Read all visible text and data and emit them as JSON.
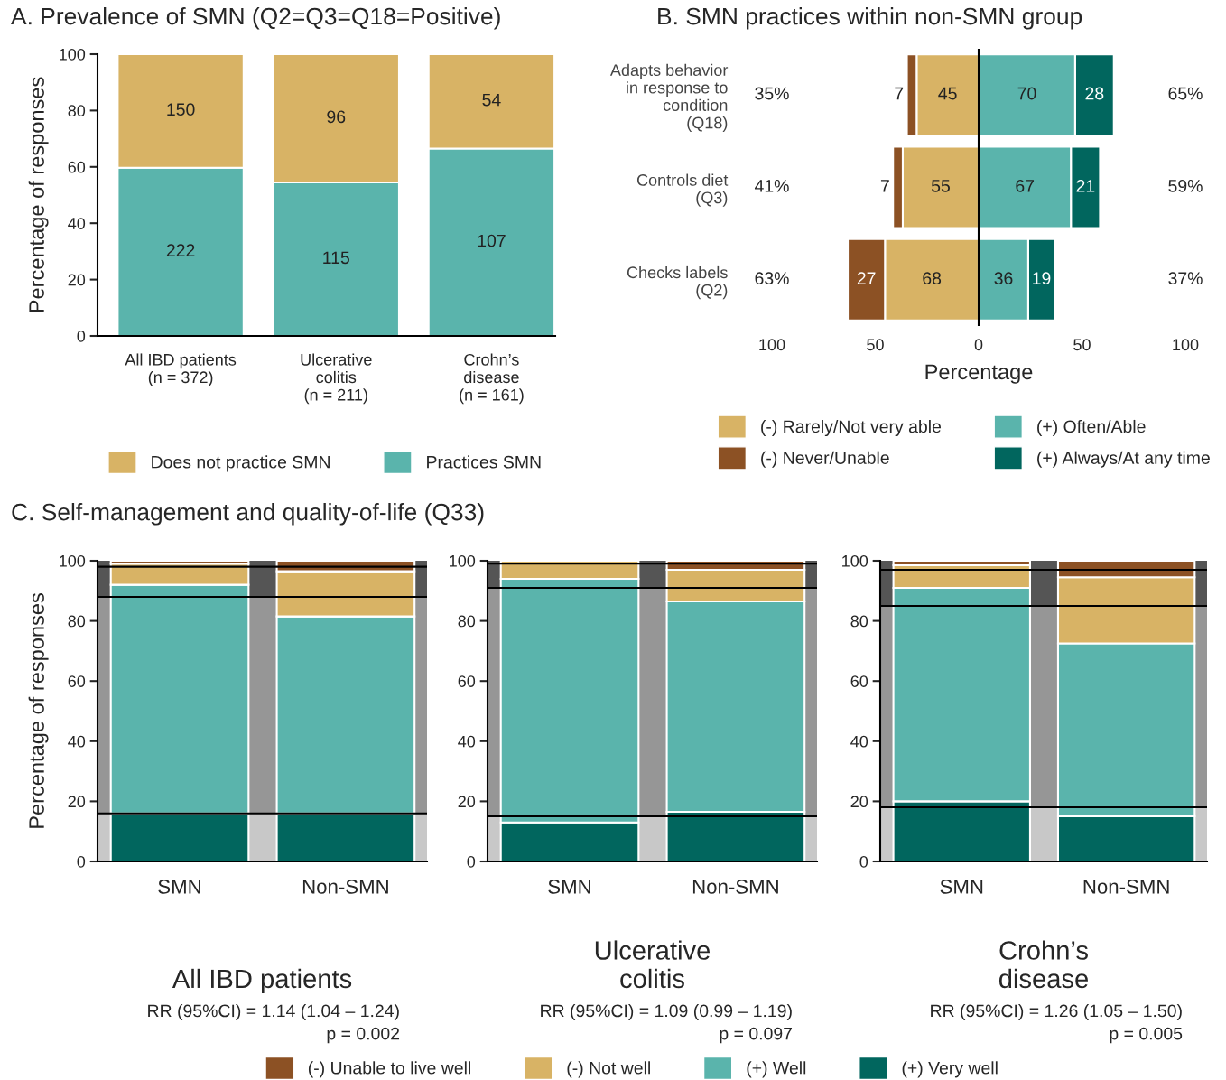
{
  "chart_data": [
    {
      "type": "bar",
      "title": "A. Prevalence of SMN (Q2=Q3=Q18=Positive)",
      "categories": [
        "All IBD patients\n(n = 372)",
        "Ulcerative\ncolitis\n(n = 211)",
        "Crohn’s\ndisease\n(n = 161)"
      ],
      "ylabel": "Percentage of responses",
      "stacked": true,
      "ylim": [
        0,
        100
      ],
      "yticks": [
        0,
        20,
        40,
        60,
        80,
        100
      ],
      "legend": "bottom",
      "annotations": [
        "222",
        "115",
        "107",
        "150",
        "96",
        "54"
      ],
      "series": [
        {
          "name": "Practices SMN",
          "color": "#5ab4ac",
          "values": [
            59.7,
            54.5,
            66.5
          ]
        },
        {
          "name": "Does not practice SMN",
          "color": "#d8b365",
          "values": [
            40.3,
            45.5,
            33.5
          ]
        }
      ]
    },
    {
      "type": "bar",
      "orientation": "horizontal",
      "stacked": true,
      "title": "B. SMN practices within non-SMN group",
      "categories": [
        "Adapts behavior\nin response to\ncondition\n(Q18)",
        "Controls diet\n(Q3)",
        "Checks labels\n(Q2)"
      ],
      "xlabel": "Percentage",
      "xlim": [
        -100,
        100
      ],
      "xticks": [
        {
          "value": -100,
          "label": "100"
        },
        {
          "value": -50,
          "label": "50"
        },
        0,
        50,
        100
      ],
      "legend": "bottom",
      "ref_lines": [
        {
          "axis": "x",
          "value": 0
        }
      ],
      "annotations": [
        "35%",
        "65%",
        "41%",
        "59%",
        "63%",
        "37%",
        "45",
        "55",
        "68",
        "7",
        "7",
        "27",
        "70",
        "67",
        "36",
        "28",
        "21",
        "19"
      ],
      "series": [
        {
          "name": "(-) Rarely/Not very able",
          "color": "#d8b365",
          "values": [
            -30,
            -36.7,
            -45.3
          ]
        },
        {
          "name": "(-) Never/Unable",
          "color": "#8c5124",
          "values": [
            -4.7,
            -4.7,
            -18
          ]
        },
        {
          "name": "(+) Often/Able",
          "color": "#5ab4ac",
          "values": [
            46.7,
            44.7,
            24
          ]
        },
        {
          "name": "(+) Always/At any time",
          "color": "#01665e",
          "values": [
            18.7,
            14,
            12.7
          ]
        }
      ]
    },
    {
      "type": "bar",
      "title": "C. Self-management and quality-of-life (Q33)",
      "categories": [
        "SMN",
        "Non-SMN"
      ],
      "xlabel": "All IBD patients",
      "ylabel": "Percentage of responses",
      "stacked": true,
      "ylim": [
        0,
        100
      ],
      "yticks": [
        0,
        20,
        40,
        60,
        80,
        100
      ],
      "bands": [
        {
          "axis": "y",
          "from": 0,
          "to": 16,
          "color": "#c8c8c8"
        },
        {
          "axis": "y",
          "from": 16,
          "to": 88,
          "color": "#969696"
        },
        {
          "axis": "y",
          "from": 88,
          "to": 100,
          "color": "#555555"
        }
      ],
      "ref_lines": [
        {
          "axis": "y",
          "value": 16
        },
        {
          "axis": "y",
          "value": 88
        },
        {
          "axis": "y",
          "value": 98
        }
      ],
      "annotations": [
        "RR (95%CI) = 1.14 (1.04 – 1.24)\np = 0.002"
      ],
      "series": [
        {
          "color": "#01665e",
          "values": [
            16,
            16
          ]
        },
        {
          "color": "#5ab4ac",
          "values": [
            76,
            65.5
          ]
        },
        {
          "color": "#d8b365",
          "values": [
            7,
            15
          ]
        },
        {
          "color": "#8c5124",
          "values": [
            1,
            3.5
          ]
        }
      ]
    },
    {
      "type": "bar",
      "categories": [
        "SMN",
        "Non-SMN"
      ],
      "xlabel": "Ulcerative\ncolitis",
      "stacked": true,
      "ylim": [
        0,
        100
      ],
      "yticks": [
        0,
        20,
        40,
        60,
        80,
        100
      ],
      "legend": "bottom",
      "bands": [
        {
          "axis": "y",
          "from": 0,
          "to": 15,
          "color": "#c8c8c8"
        },
        {
          "axis": "y",
          "from": 15,
          "to": 91,
          "color": "#969696"
        },
        {
          "axis": "y",
          "from": 91,
          "to": 100,
          "color": "#555555"
        }
      ],
      "ref_lines": [
        {
          "axis": "y",
          "value": 15
        },
        {
          "axis": "y",
          "value": 91
        },
        {
          "axis": "y",
          "value": 99
        }
      ],
      "annotations": [
        "RR (95%CI) = 1.09 (0.99 – 1.19)\np = 0.097"
      ],
      "series": [
        {
          "name": "(+) Very well",
          "color": "#01665e",
          "values": [
            13,
            16.5
          ]
        },
        {
          "name": "(+) Well",
          "color": "#5ab4ac",
          "values": [
            81,
            70
          ]
        },
        {
          "name": "(-) Not well",
          "color": "#d8b365",
          "values": [
            6,
            10.5
          ]
        },
        {
          "name": "(-) Unable to live well",
          "color": "#8c5124",
          "values": [
            0,
            3
          ]
        }
      ]
    },
    {
      "type": "bar",
      "categories": [
        "SMN",
        "Non-SMN"
      ],
      "xlabel": "Crohn’s\ndisease",
      "stacked": true,
      "ylim": [
        0,
        100
      ],
      "yticks": [
        0,
        20,
        40,
        60,
        80,
        100
      ],
      "bands": [
        {
          "axis": "y",
          "from": 0,
          "to": 18,
          "color": "#c8c8c8"
        },
        {
          "axis": "y",
          "from": 18,
          "to": 85,
          "color": "#969696"
        },
        {
          "axis": "y",
          "from": 85,
          "to": 100,
          "color": "#555555"
        }
      ],
      "ref_lines": [
        {
          "axis": "y",
          "value": 18
        },
        {
          "axis": "y",
          "value": 85
        },
        {
          "axis": "y",
          "value": 97
        }
      ],
      "annotations": [
        "RR (95%CI) = 1.26 (1.05 – 1.50)\np = 0.005"
      ],
      "series": [
        {
          "color": "#01665e",
          "values": [
            20,
            15
          ]
        },
        {
          "color": "#5ab4ac",
          "values": [
            71,
            57.5
          ]
        },
        {
          "color": "#d8b365",
          "values": [
            7.5,
            22
          ]
        },
        {
          "color": "#8c5124",
          "values": [
            1.5,
            5.5
          ]
        }
      ]
    }
  ]
}
